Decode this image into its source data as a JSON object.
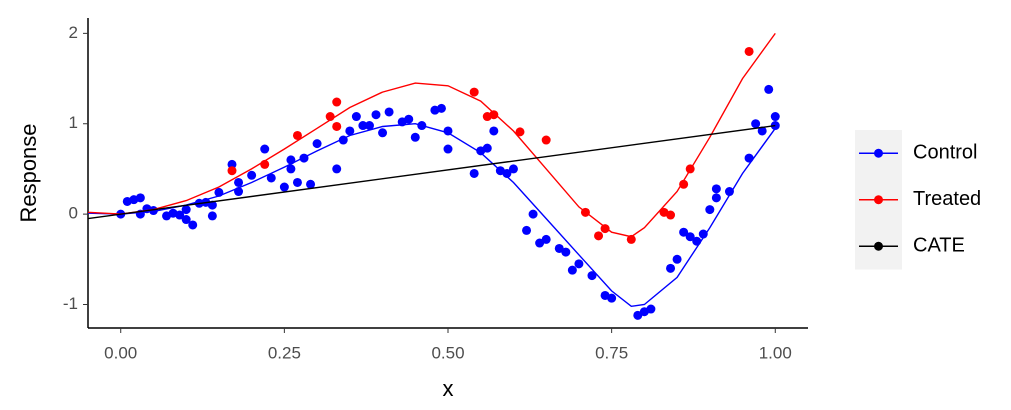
{
  "chart_data": {
    "type": "scatter",
    "xlabel": "x",
    "ylabel": "Response",
    "xlim": [
      -0.05,
      1.05
    ],
    "ylim": [
      -1.26,
      2.17
    ],
    "xticks": [
      {
        "value": 0,
        "label": "0.00"
      },
      {
        "value": 0.25,
        "label": "0.25"
      },
      {
        "value": 0.5,
        "label": "0.50"
      },
      {
        "value": 0.75,
        "label": "0.75"
      },
      {
        "value": 1,
        "label": "1.00"
      }
    ],
    "yticks": [
      -1,
      0,
      1,
      2
    ],
    "grid": false,
    "legend_position": "right",
    "series": [
      {
        "name": "Control",
        "color": "#0000ff",
        "x": [
          0.0,
          0.01,
          0.02,
          0.03,
          0.03,
          0.04,
          0.05,
          0.07,
          0.08,
          0.09,
          0.1,
          0.1,
          0.11,
          0.12,
          0.13,
          0.14,
          0.14,
          0.15,
          0.17,
          0.18,
          0.18,
          0.2,
          0.22,
          0.23,
          0.25,
          0.26,
          0.26,
          0.27,
          0.28,
          0.29,
          0.3,
          0.33,
          0.34,
          0.35,
          0.36,
          0.37,
          0.38,
          0.39,
          0.4,
          0.41,
          0.43,
          0.44,
          0.45,
          0.46,
          0.48,
          0.49,
          0.5,
          0.5,
          0.54,
          0.55,
          0.56,
          0.57,
          0.58,
          0.59,
          0.6,
          0.62,
          0.63,
          0.64,
          0.65,
          0.67,
          0.68,
          0.69,
          0.7,
          0.72,
          0.74,
          0.75,
          0.79,
          0.8,
          0.81,
          0.84,
          0.85,
          0.86,
          0.87,
          0.88,
          0.89,
          0.9,
          0.91,
          0.91,
          0.93,
          0.96,
          0.97,
          0.98,
          0.99,
          1.0,
          1.0
        ],
        "values": [
          0.0,
          0.14,
          0.16,
          0.18,
          0.0,
          0.06,
          0.04,
          -0.02,
          0.01,
          -0.01,
          0.05,
          -0.06,
          -0.12,
          0.12,
          0.13,
          0.1,
          -0.02,
          0.24,
          0.55,
          0.35,
          0.25,
          0.43,
          0.72,
          0.4,
          0.3,
          0.5,
          0.6,
          0.35,
          0.62,
          0.33,
          0.78,
          0.5,
          0.82,
          0.92,
          1.08,
          0.98,
          0.98,
          1.1,
          0.9,
          1.13,
          1.02,
          1.05,
          0.85,
          0.98,
          1.15,
          1.17,
          0.92,
          0.72,
          0.45,
          0.7,
          0.73,
          0.92,
          0.48,
          0.45,
          0.5,
          -0.18,
          0.0,
          -0.32,
          -0.28,
          -0.38,
          -0.42,
          -0.62,
          -0.55,
          -0.68,
          -0.9,
          -0.93,
          -1.12,
          -1.08,
          -1.05,
          -0.6,
          -0.5,
          -0.2,
          -0.25,
          -0.3,
          -0.22,
          0.05,
          0.28,
          0.18,
          0.25,
          0.62,
          1.0,
          0.92,
          1.38,
          1.08,
          0.98
        ],
        "curve_x": [
          -0.05,
          0,
          0.05,
          0.1,
          0.15,
          0.2,
          0.25,
          0.3,
          0.35,
          0.4,
          0.45,
          0.5,
          0.55,
          0.6,
          0.65,
          0.7,
          0.75,
          0.78,
          0.8,
          0.85,
          0.9,
          0.95,
          1.0
        ],
        "curve_values": [
          0.01,
          0,
          0.03,
          0.1,
          0.2,
          0.35,
          0.52,
          0.7,
          0.87,
          0.97,
          1.0,
          0.9,
          0.68,
          0.35,
          -0.05,
          -0.45,
          -0.85,
          -1.02,
          -1.0,
          -0.7,
          -0.15,
          0.45,
          0.95
        ]
      },
      {
        "name": "Treated",
        "color": "#ff0000",
        "x": [
          0.17,
          0.22,
          0.27,
          0.32,
          0.33,
          0.33,
          0.54,
          0.56,
          0.57,
          0.61,
          0.65,
          0.71,
          0.73,
          0.74,
          0.78,
          0.83,
          0.84,
          0.86,
          0.87,
          0.96
        ],
        "values": [
          0.48,
          0.55,
          0.87,
          1.08,
          1.24,
          0.97,
          1.35,
          1.08,
          1.1,
          0.91,
          0.82,
          0.02,
          -0.24,
          -0.16,
          -0.28,
          0.02,
          -0.01,
          0.33,
          0.5,
          1.8
        ],
        "curve_x": [
          -0.05,
          0,
          0.05,
          0.1,
          0.15,
          0.2,
          0.25,
          0.3,
          0.35,
          0.4,
          0.45,
          0.5,
          0.55,
          0.6,
          0.65,
          0.7,
          0.75,
          0.78,
          0.8,
          0.85,
          0.9,
          0.95,
          1.0
        ],
        "curve_values": [
          0.02,
          0,
          0.05,
          0.15,
          0.3,
          0.5,
          0.72,
          0.95,
          1.18,
          1.35,
          1.45,
          1.42,
          1.25,
          0.92,
          0.5,
          0.08,
          -0.2,
          -0.25,
          -0.15,
          0.25,
          0.85,
          1.5,
          2.0
        ]
      },
      {
        "name": "CATE",
        "color": "#000000",
        "curve_x": [
          -0.05,
          1.0
        ],
        "curve_values": [
          -0.05,
          0.98
        ]
      }
    ]
  }
}
